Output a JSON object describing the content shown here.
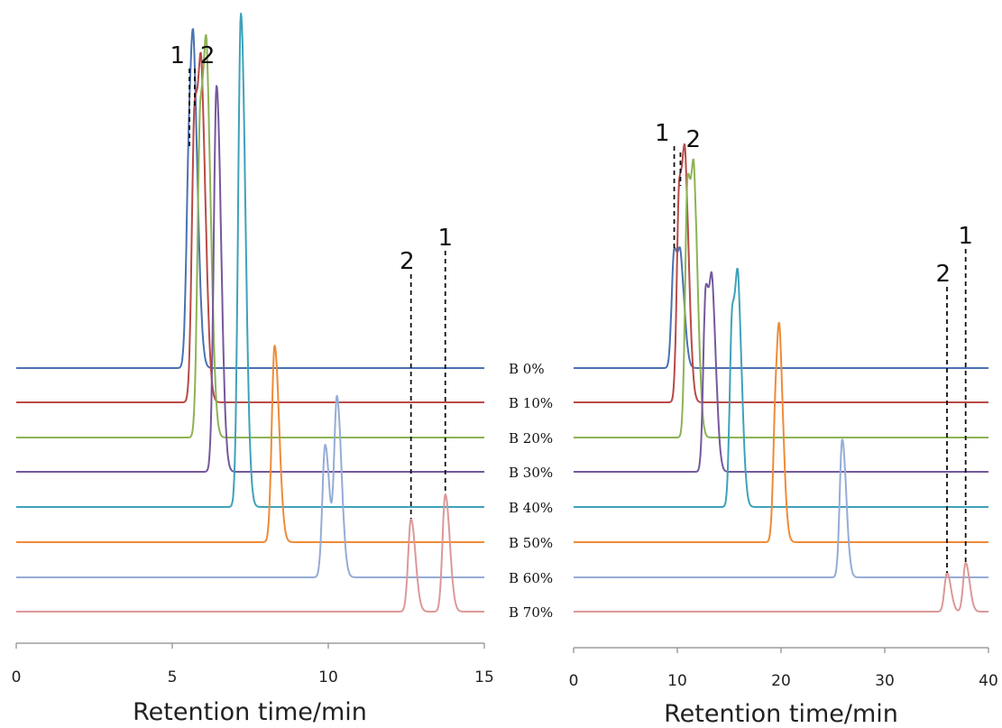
{
  "chart_data": [
    {
      "type": "line",
      "xlabel": "Retention time/min",
      "xlim": [
        0,
        15
      ],
      "xticks": [
        "0",
        "5",
        "10",
        "15"
      ],
      "series": [
        {
          "name": "B 0%",
          "color": "#4a72b2",
          "peaks": [
            {
              "x": 5.55,
              "h": 243
            },
            {
              "x": 5.7,
              "h": 215
            }
          ]
        },
        {
          "name": "B 10%",
          "color": "#b94a47",
          "peaks": [
            {
              "x": 5.72,
              "h": 325
            },
            {
              "x": 5.95,
              "h": 278
            }
          ]
        },
        {
          "name": "B 20%",
          "color": "#8db354",
          "peaks": [
            {
              "x": 5.9,
              "h": 358
            },
            {
              "x": 6.12,
              "h": 312
            }
          ]
        },
        {
          "name": "B 30%",
          "color": "#74599c",
          "peaks": [
            {
              "x": 6.42,
              "h": 428
            }
          ]
        },
        {
          "name": "B 40%",
          "color": "#3ea2ba",
          "peaks": [
            {
              "x": 7.2,
              "h": 547
            }
          ]
        },
        {
          "name": "B 50%",
          "color": "#ee8b37",
          "peaks": [
            {
              "x": 8.28,
              "h": 218
            }
          ]
        },
        {
          "name": "B 60%",
          "color": "#95acd6",
          "peaks": [
            {
              "x": 9.9,
              "h": 147
            },
            {
              "x": 10.28,
              "h": 197
            }
          ]
        },
        {
          "name": "B 70%",
          "color": "#dc9898",
          "peaks": [
            {
              "x": 12.65,
              "h": 103
            },
            {
              "x": 13.75,
              "h": 130
            }
          ]
        }
      ],
      "peak_labels": [
        {
          "text": "1",
          "x": 5.55
        },
        {
          "text": "2",
          "x": 5.72
        },
        {
          "text": "2",
          "x": 12.65
        },
        {
          "text": "1",
          "x": 13.75
        }
      ]
    },
    {
      "type": "line",
      "xlabel": "Retention time/min",
      "xlim": [
        0,
        40
      ],
      "xticks": [
        "0",
        "10",
        "20",
        "30",
        "40"
      ],
      "series": [
        {
          "name": "B 0%",
          "color": "#4a72b2",
          "peaks": [
            {
              "x": 9.7,
              "h": 130
            },
            {
              "x": 10.35,
              "h": 95
            }
          ]
        },
        {
          "name": "B 10%",
          "color": "#b94a47",
          "peaks": [
            {
              "x": 10.2,
              "h": 240
            },
            {
              "x": 10.8,
              "h": 200
            }
          ]
        },
        {
          "name": "B 20%",
          "color": "#8db354",
          "peaks": [
            {
              "x": 11.0,
              "h": 285
            },
            {
              "x": 11.65,
              "h": 225
            }
          ]
        },
        {
          "name": "B 30%",
          "color": "#74599c",
          "peaks": [
            {
              "x": 12.75,
              "h": 203
            },
            {
              "x": 13.4,
              "h": 162
            }
          ]
        },
        {
          "name": "B 40%",
          "color": "#3ea2ba",
          "peaks": [
            {
              "x": 15.3,
              "h": 215
            },
            {
              "x": 15.9,
              "h": 188
            }
          ]
        },
        {
          "name": "B 50%",
          "color": "#ee8b37",
          "peaks": [
            {
              "x": 19.5,
              "h": 150
            },
            {
              "x": 19.9,
              "h": 145
            }
          ]
        },
        {
          "name": "B 60%",
          "color": "#95acd6",
          "peaks": [
            {
              "x": 25.9,
              "h": 153
            }
          ]
        },
        {
          "name": "B 70%",
          "color": "#dc9898",
          "peaks": [
            {
              "x": 36.0,
              "h": 43
            },
            {
              "x": 37.8,
              "h": 54
            }
          ]
        }
      ],
      "peak_labels": [
        {
          "text": "1",
          "x": 9.7
        },
        {
          "text": "2",
          "x": 10.3
        },
        {
          "text": "2",
          "x": 36.0
        },
        {
          "text": "1",
          "x": 37.8
        }
      ]
    }
  ]
}
